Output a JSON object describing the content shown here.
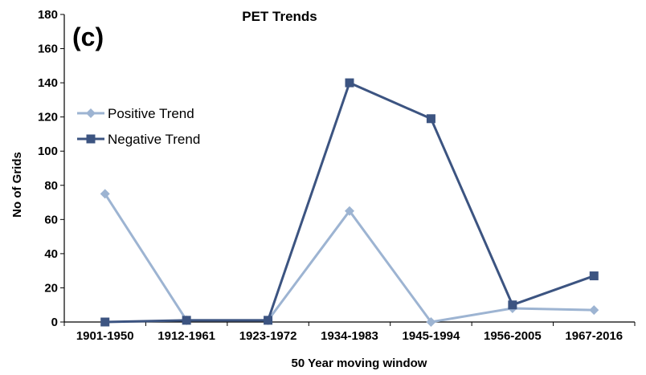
{
  "chart_data": {
    "type": "line",
    "title": "PET Trends",
    "panel_label": "(c)",
    "xlabel": "50 Year moving window",
    "ylabel": "No of Grids",
    "ylim": [
      0,
      180
    ],
    "yticks": [
      0,
      20,
      40,
      60,
      80,
      100,
      120,
      140,
      160,
      180
    ],
    "grid": false,
    "legend_position": "left",
    "categories": [
      "1901-1950",
      "1912-1961",
      "1923-1972",
      "1934-1983",
      "1945-1994",
      "1956-2005",
      "1967-2016"
    ],
    "series": [
      {
        "name": "Positive Trend",
        "color": "#9db4d2",
        "marker": "diamond",
        "values": [
          75,
          1,
          1,
          65,
          0,
          8,
          7
        ]
      },
      {
        "name": "Negative Trend",
        "color": "#3c5481",
        "marker": "square",
        "values": [
          0,
          1,
          1,
          140,
          119,
          10,
          27
        ]
      }
    ]
  }
}
